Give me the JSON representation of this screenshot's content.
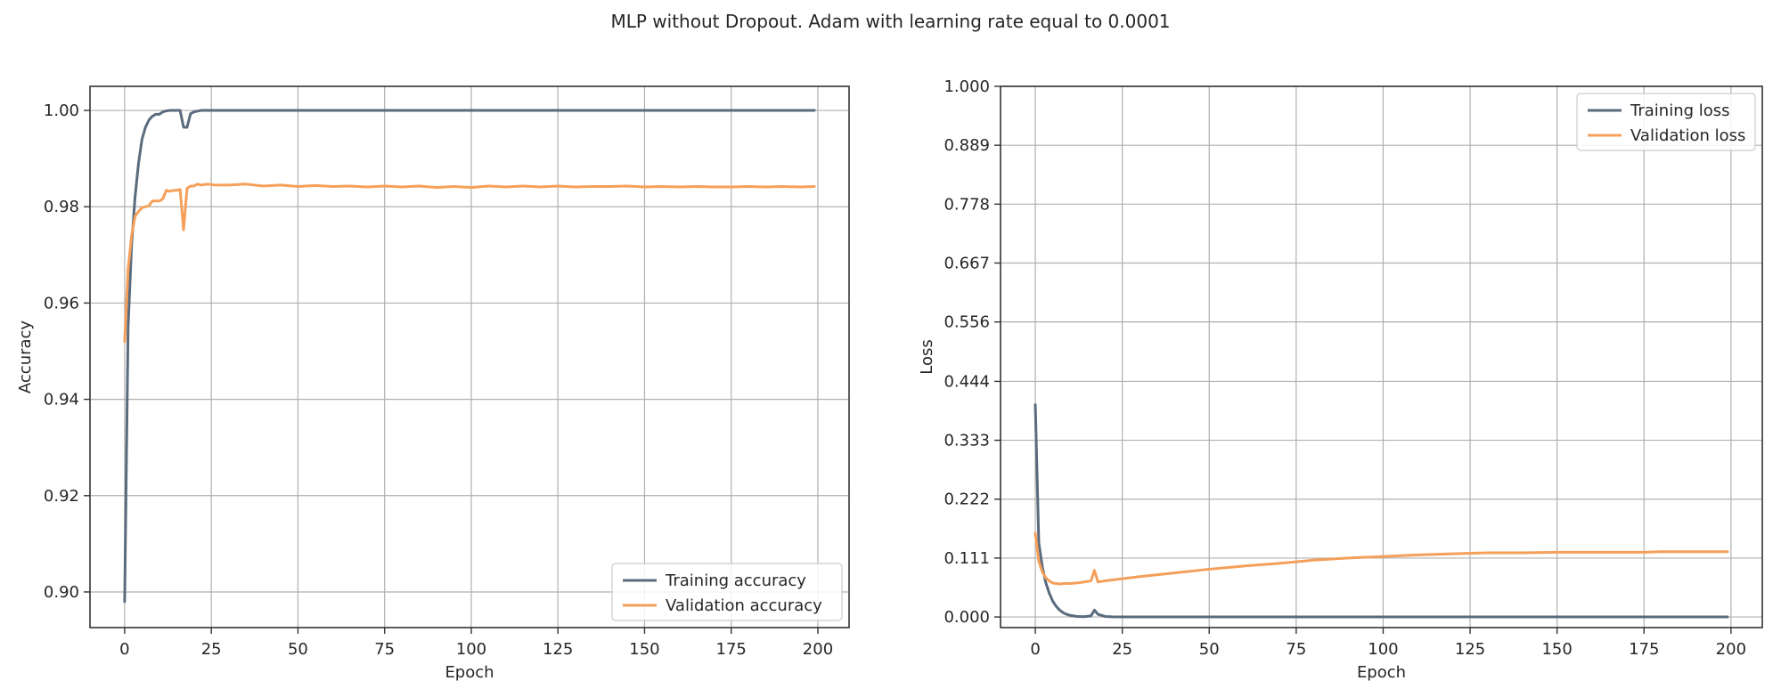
{
  "figure": {
    "suptitle": "MLP without Dropout. Adam with learning rate equal to 0.0001"
  },
  "chart_data": [
    {
      "type": "line",
      "xlabel": "Epoch",
      "ylabel": "Accuracy",
      "xlim": [
        -10,
        209
      ],
      "ylim": [
        0.8926,
        1.005
      ],
      "x_ticks": [
        0,
        25,
        50,
        75,
        100,
        125,
        150,
        175,
        200
      ],
      "y_ticks": [
        0.9,
        0.92,
        0.94,
        0.96,
        0.98,
        1.0
      ],
      "y_tick_labels": [
        "0.90",
        "0.92",
        "0.94",
        "0.96",
        "0.98",
        "1.00"
      ],
      "x_tick_labels": [
        "0",
        "25",
        "50",
        "75",
        "100",
        "125",
        "150",
        "175",
        "200"
      ],
      "grid": true,
      "legend": "lower right",
      "series": [
        {
          "name": "Training accuracy",
          "color": "#5a6b7d",
          "points": [
            [
              0,
              0.898
            ],
            [
              1,
              0.955
            ],
            [
              2,
              0.972
            ],
            [
              3,
              0.982
            ],
            [
              4,
              0.989
            ],
            [
              5,
              0.994
            ],
            [
              6,
              0.9965
            ],
            [
              7,
              0.998
            ],
            [
              8,
              0.9988
            ],
            [
              9,
              0.9992
            ],
            [
              10,
              0.9992
            ],
            [
              11,
              0.9997
            ],
            [
              12,
              0.9999
            ],
            [
              13,
              1.0
            ],
            [
              14,
              1.0
            ],
            [
              15,
              1.0
            ],
            [
              16,
              1.0
            ],
            [
              17,
              0.9965
            ],
            [
              18,
              0.9965
            ],
            [
              19,
              0.9993
            ],
            [
              20,
              0.9997
            ],
            [
              22,
              1.0
            ],
            [
              25,
              1.0
            ],
            [
              50,
              1.0
            ],
            [
              75,
              1.0
            ],
            [
              100,
              1.0
            ],
            [
              125,
              1.0
            ],
            [
              150,
              1.0
            ],
            [
              175,
              1.0
            ],
            [
              199,
              1.0
            ]
          ]
        },
        {
          "name": "Validation accuracy",
          "color": "#f5a05a",
          "points": [
            [
              0,
              0.952
            ],
            [
              1,
              0.967
            ],
            [
              2,
              0.974
            ],
            [
              3,
              0.978
            ],
            [
              4,
              0.979
            ],
            [
              5,
              0.9798
            ],
            [
              6,
              0.98
            ],
            [
              7,
              0.9802
            ],
            [
              8,
              0.9812
            ],
            [
              9,
              0.9812
            ],
            [
              10,
              0.9812
            ],
            [
              11,
              0.9816
            ],
            [
              12,
              0.9834
            ],
            [
              13,
              0.9832
            ],
            [
              14,
              0.9834
            ],
            [
              15,
              0.9834
            ],
            [
              16,
              0.9836
            ],
            [
              17,
              0.9752
            ],
            [
              18,
              0.9838
            ],
            [
              19,
              0.9843
            ],
            [
              20,
              0.9843
            ],
            [
              21,
              0.9847
            ],
            [
              22,
              0.9845
            ],
            [
              24,
              0.9847
            ],
            [
              26,
              0.9845
            ],
            [
              30,
              0.9845
            ],
            [
              35,
              0.9847
            ],
            [
              40,
              0.9843
            ],
            [
              45,
              0.9845
            ],
            [
              50,
              0.9842
            ],
            [
              55,
              0.9844
            ],
            [
              60,
              0.9842
            ],
            [
              65,
              0.9843
            ],
            [
              70,
              0.9841
            ],
            [
              75,
              0.9843
            ],
            [
              80,
              0.9841
            ],
            [
              85,
              0.9843
            ],
            [
              90,
              0.984
            ],
            [
              95,
              0.9842
            ],
            [
              100,
              0.984
            ],
            [
              105,
              0.9843
            ],
            [
              110,
              0.9841
            ],
            [
              115,
              0.9843
            ],
            [
              120,
              0.9841
            ],
            [
              125,
              0.9843
            ],
            [
              130,
              0.9841
            ],
            [
              135,
              0.9842
            ],
            [
              140,
              0.9842
            ],
            [
              145,
              0.9843
            ],
            [
              150,
              0.9841
            ],
            [
              155,
              0.9842
            ],
            [
              160,
              0.9841
            ],
            [
              165,
              0.9842
            ],
            [
              170,
              0.9841
            ],
            [
              175,
              0.9841
            ],
            [
              180,
              0.9842
            ],
            [
              185,
              0.9841
            ],
            [
              190,
              0.9842
            ],
            [
              195,
              0.9841
            ],
            [
              199,
              0.9842
            ]
          ]
        }
      ]
    },
    {
      "type": "line",
      "xlabel": "Epoch",
      "ylabel": "Loss",
      "xlim": [
        -10,
        209
      ],
      "ylim": [
        -0.02,
        1.0
      ],
      "x_ticks": [
        0,
        25,
        50,
        75,
        100,
        125,
        150,
        175,
        200
      ],
      "x_tick_labels": [
        "0",
        "25",
        "50",
        "75",
        "100",
        "125",
        "150",
        "175",
        "200"
      ],
      "y_ticks": [
        0.0,
        0.111,
        0.222,
        0.333,
        0.444,
        0.556,
        0.667,
        0.778,
        0.889,
        1.0
      ],
      "y_tick_labels": [
        "0.000",
        "0.111",
        "0.222",
        "0.333",
        "0.444",
        "0.556",
        "0.667",
        "0.778",
        "0.889",
        "1.000"
      ],
      "grid": true,
      "legend": "upper right",
      "series": [
        {
          "name": "Training loss",
          "color": "#5a6b7d",
          "points": [
            [
              0,
              0.4
            ],
            [
              1,
              0.14
            ],
            [
              2,
              0.095
            ],
            [
              3,
              0.065
            ],
            [
              4,
              0.045
            ],
            [
              5,
              0.03
            ],
            [
              6,
              0.02
            ],
            [
              7,
              0.013
            ],
            [
              8,
              0.008
            ],
            [
              9,
              0.005
            ],
            [
              10,
              0.003
            ],
            [
              12,
              0.001
            ],
            [
              14,
              0.0005
            ],
            [
              16,
              0.002
            ],
            [
              17,
              0.013
            ],
            [
              18,
              0.005
            ],
            [
              20,
              0.001
            ],
            [
              22,
              0.0003
            ],
            [
              25,
              0.0002
            ],
            [
              50,
              0.0001
            ],
            [
              100,
              0.0001
            ],
            [
              150,
              0.0001
            ],
            [
              199,
              0.0001
            ]
          ]
        },
        {
          "name": "Validation loss",
          "color": "#f5a05a",
          "points": [
            [
              0,
              0.158
            ],
            [
              1,
              0.105
            ],
            [
              2,
              0.085
            ],
            [
              3,
              0.074
            ],
            [
              4,
              0.068
            ],
            [
              5,
              0.064
            ],
            [
              6,
              0.063
            ],
            [
              7,
              0.062
            ],
            [
              8,
              0.063
            ],
            [
              10,
              0.063
            ],
            [
              12,
              0.064
            ],
            [
              14,
              0.066
            ],
            [
              16,
              0.068
            ],
            [
              17,
              0.088
            ],
            [
              18,
              0.066
            ],
            [
              20,
              0.068
            ],
            [
              25,
              0.072
            ],
            [
              30,
              0.076
            ],
            [
              40,
              0.083
            ],
            [
              50,
              0.09
            ],
            [
              60,
              0.096
            ],
            [
              70,
              0.101
            ],
            [
              75,
              0.104
            ],
            [
              80,
              0.107
            ],
            [
              90,
              0.111
            ],
            [
              100,
              0.114
            ],
            [
              110,
              0.117
            ],
            [
              120,
              0.119
            ],
            [
              125,
              0.12
            ],
            [
              130,
              0.121
            ],
            [
              140,
              0.121
            ],
            [
              150,
              0.122
            ],
            [
              160,
              0.122
            ],
            [
              170,
              0.122
            ],
            [
              175,
              0.122
            ],
            [
              180,
              0.123
            ],
            [
              190,
              0.123
            ],
            [
              199,
              0.123
            ]
          ]
        }
      ]
    }
  ]
}
